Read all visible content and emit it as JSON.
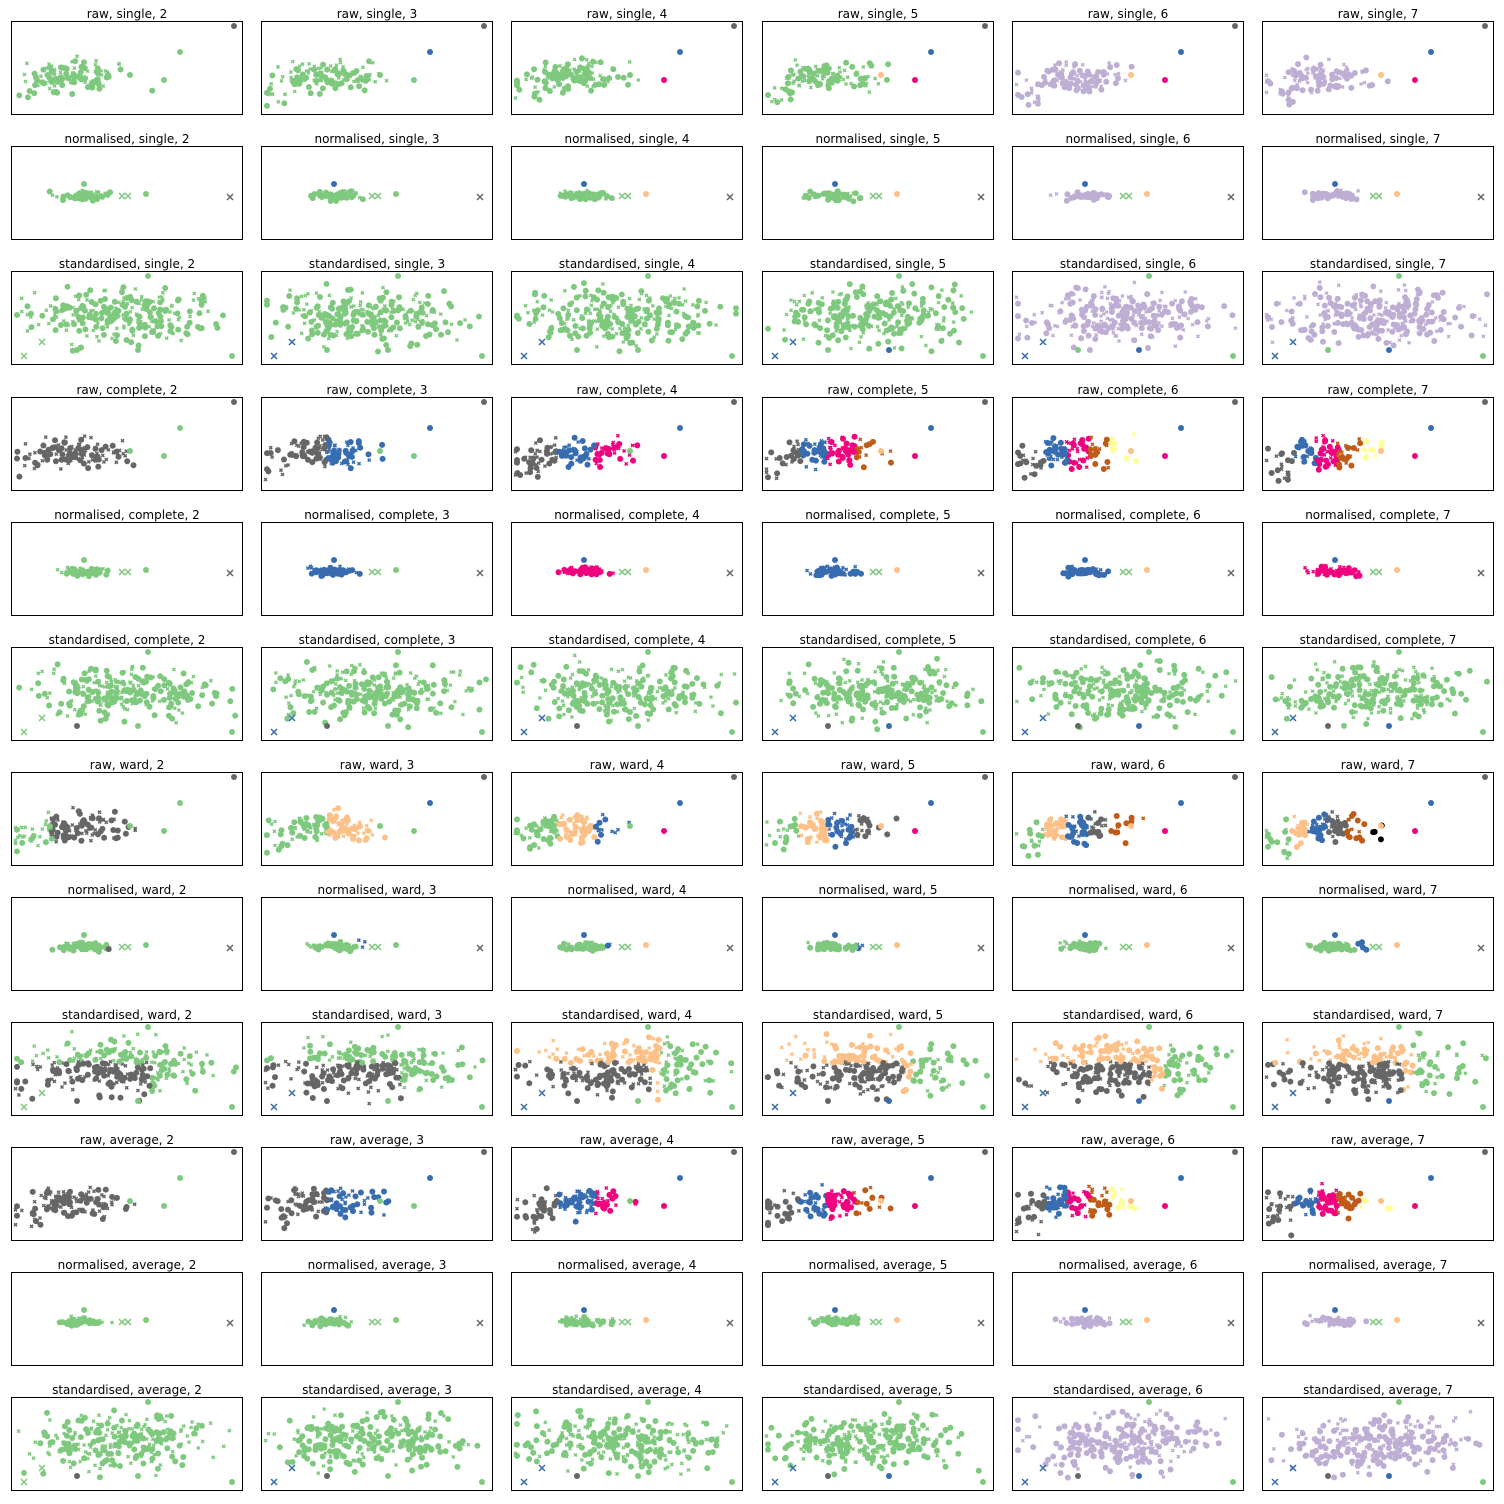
{
  "colors": {
    "green": "#7fc97f",
    "grey": "#666666",
    "blue": "#386cb0",
    "orange": "#fdc086",
    "magenta": "#f0027f",
    "brown": "#bf5b17",
    "purple": "#beaed4",
    "yellow": "#ffff99"
  },
  "chart_data": [
    {
      "type": "scatter",
      "title": "raw, single, 2",
      "preprocessing": "raw",
      "linkage": "single",
      "k": 2,
      "xaxis": "none",
      "yaxis": "none"
    },
    {
      "type": "scatter",
      "title": "raw, single, 3",
      "preprocessing": "raw",
      "linkage": "single",
      "k": 3,
      "xaxis": "none",
      "yaxis": "none"
    },
    {
      "type": "scatter",
      "title": "raw, single, 4",
      "preprocessing": "raw",
      "linkage": "single",
      "k": 4,
      "xaxis": "none",
      "yaxis": "none"
    },
    {
      "type": "scatter",
      "title": "raw, single, 5",
      "preprocessing": "raw",
      "linkage": "single",
      "k": 5,
      "xaxis": "none",
      "yaxis": "none"
    },
    {
      "type": "scatter",
      "title": "raw, single, 6",
      "preprocessing": "raw",
      "linkage": "single",
      "k": 6,
      "xaxis": "none",
      "yaxis": "none"
    },
    {
      "type": "scatter",
      "title": "raw, single, 7",
      "preprocessing": "raw",
      "linkage": "single",
      "k": 7,
      "xaxis": "none",
      "yaxis": "none"
    },
    {
      "type": "scatter",
      "title": "normalised, single, 2",
      "preprocessing": "normalised",
      "linkage": "single",
      "k": 2,
      "xaxis": "none",
      "yaxis": "none"
    },
    {
      "type": "scatter",
      "title": "normalised, single, 3",
      "preprocessing": "normalised",
      "linkage": "single",
      "k": 3,
      "xaxis": "none",
      "yaxis": "none"
    },
    {
      "type": "scatter",
      "title": "normalised, single, 4",
      "preprocessing": "normalised",
      "linkage": "single",
      "k": 4,
      "xaxis": "none",
      "yaxis": "none"
    },
    {
      "type": "scatter",
      "title": "normalised, single, 5",
      "preprocessing": "normalised",
      "linkage": "single",
      "k": 5,
      "xaxis": "none",
      "yaxis": "none"
    },
    {
      "type": "scatter",
      "title": "normalised, single, 6",
      "preprocessing": "normalised",
      "linkage": "single",
      "k": 6,
      "xaxis": "none",
      "yaxis": "none"
    },
    {
      "type": "scatter",
      "title": "normalised, single, 7",
      "preprocessing": "normalised",
      "linkage": "single",
      "k": 7,
      "xaxis": "none",
      "yaxis": "none"
    },
    {
      "type": "scatter",
      "title": "standardised, single, 2",
      "preprocessing": "standardised",
      "linkage": "single",
      "k": 2,
      "xaxis": "none",
      "yaxis": "none"
    },
    {
      "type": "scatter",
      "title": "standardised, single, 3",
      "preprocessing": "standardised",
      "linkage": "single",
      "k": 3,
      "xaxis": "none",
      "yaxis": "none"
    },
    {
      "type": "scatter",
      "title": "standardised, single, 4",
      "preprocessing": "standardised",
      "linkage": "single",
      "k": 4,
      "xaxis": "none",
      "yaxis": "none"
    },
    {
      "type": "scatter",
      "title": "standardised, single, 5",
      "preprocessing": "standardised",
      "linkage": "single",
      "k": 5,
      "xaxis": "none",
      "yaxis": "none"
    },
    {
      "type": "scatter",
      "title": "standardised, single, 6",
      "preprocessing": "standardised",
      "linkage": "single",
      "k": 6,
      "xaxis": "none",
      "yaxis": "none"
    },
    {
      "type": "scatter",
      "title": "standardised, single, 7",
      "preprocessing": "standardised",
      "linkage": "single",
      "k": 7,
      "xaxis": "none",
      "yaxis": "none"
    },
    {
      "type": "scatter",
      "title": "raw, complete, 2",
      "preprocessing": "raw",
      "linkage": "complete",
      "k": 2,
      "xaxis": "none",
      "yaxis": "none"
    },
    {
      "type": "scatter",
      "title": "raw, complete, 3",
      "preprocessing": "raw",
      "linkage": "complete",
      "k": 3,
      "xaxis": "none",
      "yaxis": "none"
    },
    {
      "type": "scatter",
      "title": "raw, complete, 4",
      "preprocessing": "raw",
      "linkage": "complete",
      "k": 4,
      "xaxis": "none",
      "yaxis": "none"
    },
    {
      "type": "scatter",
      "title": "raw, complete, 5",
      "preprocessing": "raw",
      "linkage": "complete",
      "k": 5,
      "xaxis": "none",
      "yaxis": "none"
    },
    {
      "type": "scatter",
      "title": "raw, complete, 6",
      "preprocessing": "raw",
      "linkage": "complete",
      "k": 6,
      "xaxis": "none",
      "yaxis": "none"
    },
    {
      "type": "scatter",
      "title": "raw, complete, 7",
      "preprocessing": "raw",
      "linkage": "complete",
      "k": 7,
      "xaxis": "none",
      "yaxis": "none"
    },
    {
      "type": "scatter",
      "title": "normalised, complete, 2",
      "preprocessing": "normalised",
      "linkage": "complete",
      "k": 2,
      "xaxis": "none",
      "yaxis": "none"
    },
    {
      "type": "scatter",
      "title": "normalised, complete, 3",
      "preprocessing": "normalised",
      "linkage": "complete",
      "k": 3,
      "xaxis": "none",
      "yaxis": "none"
    },
    {
      "type": "scatter",
      "title": "normalised, complete, 4",
      "preprocessing": "normalised",
      "linkage": "complete",
      "k": 4,
      "xaxis": "none",
      "yaxis": "none"
    },
    {
      "type": "scatter",
      "title": "normalised, complete, 5",
      "preprocessing": "normalised",
      "linkage": "complete",
      "k": 5,
      "xaxis": "none",
      "yaxis": "none"
    },
    {
      "type": "scatter",
      "title": "normalised, complete, 6",
      "preprocessing": "normalised",
      "linkage": "complete",
      "k": 6,
      "xaxis": "none",
      "yaxis": "none"
    },
    {
      "type": "scatter",
      "title": "normalised, complete, 7",
      "preprocessing": "normalised",
      "linkage": "complete",
      "k": 7,
      "xaxis": "none",
      "yaxis": "none"
    },
    {
      "type": "scatter",
      "title": "standardised, complete, 2",
      "preprocessing": "standardised",
      "linkage": "complete",
      "k": 2,
      "xaxis": "none",
      "yaxis": "none"
    },
    {
      "type": "scatter",
      "title": "standardised, complete, 3",
      "preprocessing": "standardised",
      "linkage": "complete",
      "k": 3,
      "xaxis": "none",
      "yaxis": "none"
    },
    {
      "type": "scatter",
      "title": "standardised, complete, 4",
      "preprocessing": "standardised",
      "linkage": "complete",
      "k": 4,
      "xaxis": "none",
      "yaxis": "none"
    },
    {
      "type": "scatter",
      "title": "standardised, complete, 5",
      "preprocessing": "standardised",
      "linkage": "complete",
      "k": 5,
      "xaxis": "none",
      "yaxis": "none"
    },
    {
      "type": "scatter",
      "title": "standardised, complete, 6",
      "preprocessing": "standardised",
      "linkage": "complete",
      "k": 6,
      "xaxis": "none",
      "yaxis": "none"
    },
    {
      "type": "scatter",
      "title": "standardised, complete, 7",
      "preprocessing": "standardised",
      "linkage": "complete",
      "k": 7,
      "xaxis": "none",
      "yaxis": "none"
    },
    {
      "type": "scatter",
      "title": "raw, ward, 2",
      "preprocessing": "raw",
      "linkage": "ward",
      "k": 2,
      "xaxis": "none",
      "yaxis": "none"
    },
    {
      "type": "scatter",
      "title": "raw, ward, 3",
      "preprocessing": "raw",
      "linkage": "ward",
      "k": 3,
      "xaxis": "none",
      "yaxis": "none"
    },
    {
      "type": "scatter",
      "title": "raw, ward, 4",
      "preprocessing": "raw",
      "linkage": "ward",
      "k": 4,
      "xaxis": "none",
      "yaxis": "none"
    },
    {
      "type": "scatter",
      "title": "raw, ward, 5",
      "preprocessing": "raw",
      "linkage": "ward",
      "k": 5,
      "xaxis": "none",
      "yaxis": "none"
    },
    {
      "type": "scatter",
      "title": "raw, ward, 6",
      "preprocessing": "raw",
      "linkage": "ward",
      "k": 6,
      "xaxis": "none",
      "yaxis": "none"
    },
    {
      "type": "scatter",
      "title": "raw, ward, 7",
      "preprocessing": "raw",
      "linkage": "ward",
      "k": 7,
      "xaxis": "none",
      "yaxis": "none"
    },
    {
      "type": "scatter",
      "title": "normalised, ward, 2",
      "preprocessing": "normalised",
      "linkage": "ward",
      "k": 2,
      "xaxis": "none",
      "yaxis": "none"
    },
    {
      "type": "scatter",
      "title": "normalised, ward, 3",
      "preprocessing": "normalised",
      "linkage": "ward",
      "k": 3,
      "xaxis": "none",
      "yaxis": "none"
    },
    {
      "type": "scatter",
      "title": "normalised, ward, 4",
      "preprocessing": "normalised",
      "linkage": "ward",
      "k": 4,
      "xaxis": "none",
      "yaxis": "none"
    },
    {
      "type": "scatter",
      "title": "normalised, ward, 5",
      "preprocessing": "normalised",
      "linkage": "ward",
      "k": 5,
      "xaxis": "none",
      "yaxis": "none"
    },
    {
      "type": "scatter",
      "title": "normalised, ward, 6",
      "preprocessing": "normalised",
      "linkage": "ward",
      "k": 6,
      "xaxis": "none",
      "yaxis": "none"
    },
    {
      "type": "scatter",
      "title": "normalised, ward, 7",
      "preprocessing": "normalised",
      "linkage": "ward",
      "k": 7,
      "xaxis": "none",
      "yaxis": "none"
    },
    {
      "type": "scatter",
      "title": "standardised, ward, 2",
      "preprocessing": "standardised",
      "linkage": "ward",
      "k": 2,
      "xaxis": "none",
      "yaxis": "none"
    },
    {
      "type": "scatter",
      "title": "standardised, ward, 3",
      "preprocessing": "standardised",
      "linkage": "ward",
      "k": 3,
      "xaxis": "none",
      "yaxis": "none"
    },
    {
      "type": "scatter",
      "title": "standardised, ward, 4",
      "preprocessing": "standardised",
      "linkage": "ward",
      "k": 4,
      "xaxis": "none",
      "yaxis": "none"
    },
    {
      "type": "scatter",
      "title": "standardised, ward, 5",
      "preprocessing": "standardised",
      "linkage": "ward",
      "k": 5,
      "xaxis": "none",
      "yaxis": "none"
    },
    {
      "type": "scatter",
      "title": "standardised, ward, 6",
      "preprocessing": "standardised",
      "linkage": "ward",
      "k": 6,
      "xaxis": "none",
      "yaxis": "none"
    },
    {
      "type": "scatter",
      "title": "standardised, ward, 7",
      "preprocessing": "standardised",
      "linkage": "ward",
      "k": 7,
      "xaxis": "none",
      "yaxis": "none"
    },
    {
      "type": "scatter",
      "title": "raw, average, 2",
      "preprocessing": "raw",
      "linkage": "average",
      "k": 2,
      "xaxis": "none",
      "yaxis": "none"
    },
    {
      "type": "scatter",
      "title": "raw, average, 3",
      "preprocessing": "raw",
      "linkage": "average",
      "k": 3,
      "xaxis": "none",
      "yaxis": "none"
    },
    {
      "type": "scatter",
      "title": "raw, average, 4",
      "preprocessing": "raw",
      "linkage": "average",
      "k": 4,
      "xaxis": "none",
      "yaxis": "none"
    },
    {
      "type": "scatter",
      "title": "raw, average, 5",
      "preprocessing": "raw",
      "linkage": "average",
      "k": 5,
      "xaxis": "none",
      "yaxis": "none"
    },
    {
      "type": "scatter",
      "title": "raw, average, 6",
      "preprocessing": "raw",
      "linkage": "average",
      "k": 6,
      "xaxis": "none",
      "yaxis": "none"
    },
    {
      "type": "scatter",
      "title": "raw, average, 7",
      "preprocessing": "raw",
      "linkage": "average",
      "k": 7,
      "xaxis": "none",
      "yaxis": "none"
    },
    {
      "type": "scatter",
      "title": "normalised, average, 2",
      "preprocessing": "normalised",
      "linkage": "average",
      "k": 2,
      "xaxis": "none",
      "yaxis": "none"
    },
    {
      "type": "scatter",
      "title": "normalised, average, 3",
      "preprocessing": "normalised",
      "linkage": "average",
      "k": 3,
      "xaxis": "none",
      "yaxis": "none"
    },
    {
      "type": "scatter",
      "title": "normalised, average, 4",
      "preprocessing": "normalised",
      "linkage": "average",
      "k": 4,
      "xaxis": "none",
      "yaxis": "none"
    },
    {
      "type": "scatter",
      "title": "normalised, average, 5",
      "preprocessing": "normalised",
      "linkage": "average",
      "k": 5,
      "xaxis": "none",
      "yaxis": "none"
    },
    {
      "type": "scatter",
      "title": "normalised, average, 6",
      "preprocessing": "normalised",
      "linkage": "average",
      "k": 6,
      "xaxis": "none",
      "yaxis": "none"
    },
    {
      "type": "scatter",
      "title": "normalised, average, 7",
      "preprocessing": "normalised",
      "linkage": "average",
      "k": 7,
      "xaxis": "none",
      "yaxis": "none"
    },
    {
      "type": "scatter",
      "title": "standardised, average, 2",
      "preprocessing": "standardised",
      "linkage": "average",
      "k": 2,
      "xaxis": "none",
      "yaxis": "none"
    },
    {
      "type": "scatter",
      "title": "standardised, average, 3",
      "preprocessing": "standardised",
      "linkage": "average",
      "k": 3,
      "xaxis": "none",
      "yaxis": "none"
    },
    {
      "type": "scatter",
      "title": "standardised, average, 4",
      "preprocessing": "standardised",
      "linkage": "average",
      "k": 4,
      "xaxis": "none",
      "yaxis": "none"
    },
    {
      "type": "scatter",
      "title": "standardised, average, 5",
      "preprocessing": "standardised",
      "linkage": "average",
      "k": 5,
      "xaxis": "none",
      "yaxis": "none"
    },
    {
      "type": "scatter",
      "title": "standardised, average, 6",
      "preprocessing": "standardised",
      "linkage": "average",
      "k": 6,
      "xaxis": "none",
      "yaxis": "none"
    },
    {
      "type": "scatter",
      "title": "standardised, average, 7",
      "preprocessing": "standardised",
      "linkage": "average",
      "k": 7,
      "xaxis": "none",
      "yaxis": "none"
    }
  ]
}
